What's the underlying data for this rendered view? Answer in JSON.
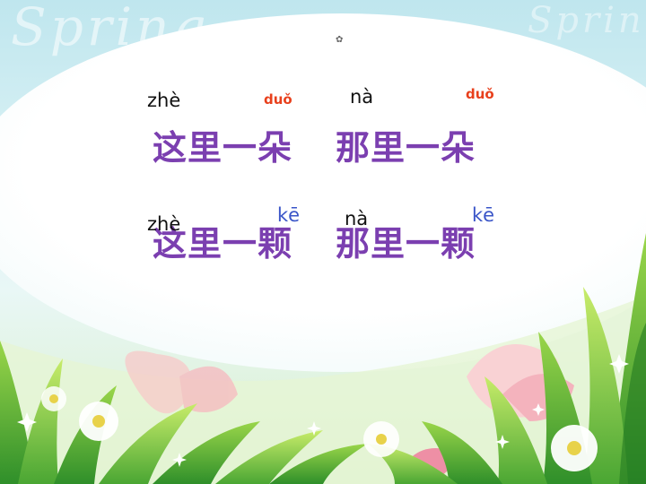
{
  "colors": {
    "hanzi": "#7b3fb0",
    "pinyin_black": "#111111",
    "pinyin_red": "#e8401c",
    "pinyin_blue": "#3a55c8"
  },
  "background": {
    "watermark_left": "Spring",
    "watermark_right": "Spring"
  },
  "row1": {
    "pinyin_zhe": "zhè",
    "pinyin_duo_1": "duǒ",
    "pinyin_na": "nà",
    "pinyin_duo_2": "duǒ",
    "phrase_1": "这里一朵",
    "phrase_2": "那里一朵"
  },
  "row2": {
    "pinyin_zhe": "zhè",
    "pinyin_ke_1": "kē",
    "pinyin_na": "nà",
    "pinyin_ke_2": "kē",
    "phrase_1": "这里一颗",
    "phrase_2": "那里一颗"
  }
}
